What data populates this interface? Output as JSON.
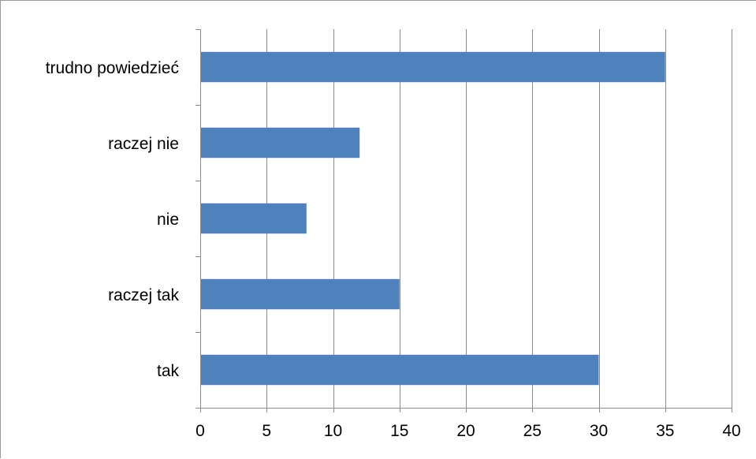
{
  "chart_data": {
    "type": "bar",
    "orientation": "horizontal",
    "categories": [
      "tak",
      "raczej tak",
      "nie ",
      "raczej nie",
      "trudno powiedzieć"
    ],
    "values": [
      30,
      15,
      8,
      12,
      35
    ],
    "xlim": [
      0,
      40
    ],
    "xticks": [
      0,
      5,
      10,
      15,
      20,
      25,
      30,
      35,
      40
    ],
    "tick_labels": [
      "0",
      "5",
      "10",
      "15",
      "20",
      "25",
      "30",
      "35",
      "40"
    ],
    "grid": "vertical major",
    "legend": "none",
    "bar_color": "#4f81bd",
    "grid_color": "#8c8c8c",
    "axis_color": "#8c8c8c"
  }
}
